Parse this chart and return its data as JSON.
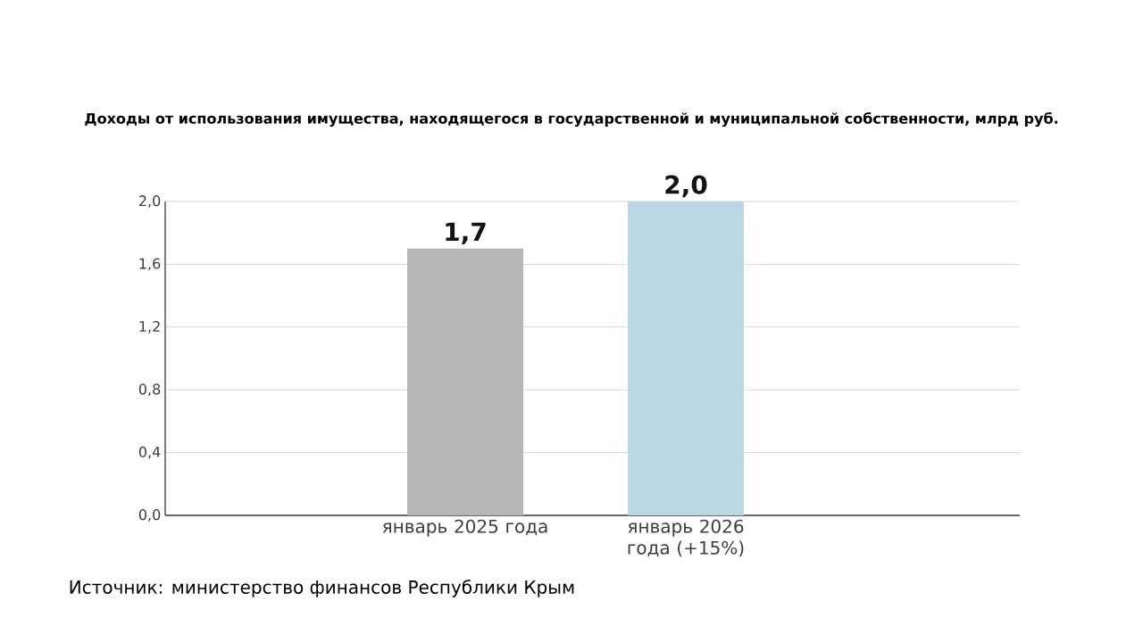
{
  "chart_data": {
    "type": "bar",
    "title": "Доходы от использования имущества, находящегося в государственной и муниципальной собственности, млрд руб.",
    "categories": [
      "январь 2025 года",
      "январь 2026 года (+15%)"
    ],
    "values": [
      1.7,
      2.0
    ],
    "colors": [
      "#b6b6b8",
      "#bcd6e4"
    ],
    "value_labels": [
      "1,7",
      "2,0"
    ],
    "ylim": [
      0,
      2.0
    ],
    "yticks": [
      {
        "value": 0,
        "label": "0,0"
      },
      {
        "value": 0.4,
        "label": "0,4"
      },
      {
        "value": 0.8,
        "label": "0,8"
      },
      {
        "value": 1.2,
        "label": "1,2"
      },
      {
        "value": 1.6,
        "label": "1,6"
      },
      {
        "value": 2.0,
        "label": "2,0"
      }
    ],
    "grid": "y",
    "annotations": [
      "Источник: министерство финансов Республики Крым"
    ]
  }
}
